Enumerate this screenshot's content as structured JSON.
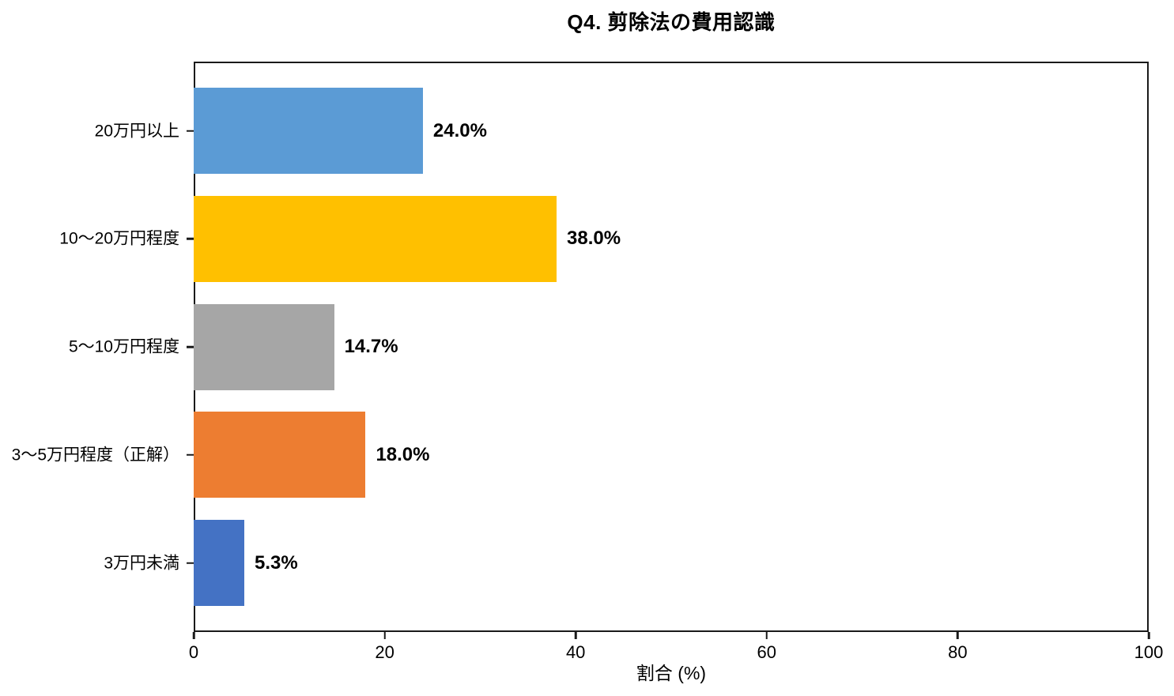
{
  "title": "Q4. 剪除法の費用認識",
  "chart_data": {
    "type": "bar",
    "orientation": "horizontal",
    "title": "Q4. 剪除法の費用認識",
    "xlabel": "割合 (%)",
    "ylabel": "",
    "categories": [
      "20万円以上",
      "10〜20万円程度",
      "5〜10万円程度",
      "3〜5万円程度（正解）",
      "3万円未満"
    ],
    "values": [
      24.0,
      38.0,
      14.7,
      18.0,
      5.3
    ],
    "value_labels": [
      "24.0%",
      "38.0%",
      "14.7%",
      "18.0%",
      "5.3%"
    ],
    "bar_colors": [
      "#5B9BD5",
      "#FFC000",
      "#A6A6A6",
      "#ED7D31",
      "#4472C4"
    ],
    "xlim": [
      0,
      100
    ],
    "xticks": [
      0,
      20,
      40,
      60,
      80,
      100
    ],
    "grid": false,
    "legend": null,
    "frame_color": "#1a1a1a",
    "background_color": "#ffffff"
  }
}
